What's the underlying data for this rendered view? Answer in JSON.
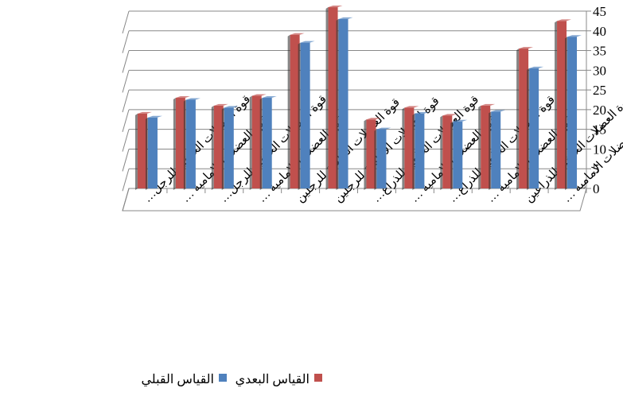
{
  "chart_data": {
    "type": "bar",
    "categories": [
      "قوة العضلات الخلفية للرجل…",
      "قوة العضلات الامامية …",
      "قوة العضلات الخلفية للرجل…",
      "قوة العضلات الامامية …",
      "قوة العضلات الخلفية للرجلين",
      "قوة العضلات الامامية للرجلين",
      "قوة العضلات الخلفية للذراع…",
      "قوة العضلات الامامية …",
      "قوة العضلات الخلفية للذراع…",
      "قوة العضلات الامامية …",
      "قوة العضلات الخلفية للذراعين",
      "قوة العضلات الامامية …"
    ],
    "series": [
      {
        "name": "القياس البعدي",
        "color": "#c0504d",
        "values": [
          19,
          23,
          21,
          23.5,
          39,
          46,
          17.5,
          20.5,
          18.5,
          21,
          35.5,
          42.5
        ]
      },
      {
        "name": "القياس القبلي",
        "color": "#4f81bd",
        "values": [
          18,
          22.5,
          20.5,
          23,
          37,
          43,
          15,
          19,
          17,
          19.5,
          30.5,
          38.5
        ]
      }
    ],
    "ylim": [
      0,
      45
    ],
    "yticks": [
      0,
      5,
      10,
      15,
      20,
      25,
      30,
      35,
      40,
      45
    ],
    "grid": true
  }
}
